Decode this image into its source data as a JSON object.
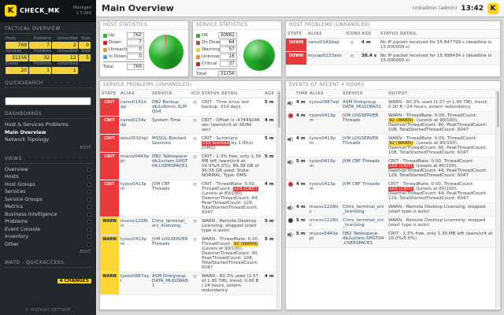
{
  "colors": {
    "accent_yellow": "#ffd600",
    "crit": "#e83a3a",
    "warn": "#ffd633",
    "ok_green": "#2eb122",
    "down": "#e83a3a",
    "unreach_orange": "#f48e26",
    "downtime_blue": "#44a6e0",
    "on_down_host": "#b84a4a",
    "dot_red": "#d23535",
    "dot_dark": "#3d3d3d"
  },
  "app": {
    "brand": "CHECK_MK",
    "edition": "Managed",
    "version": "1.5.0b9",
    "logo_letter": "K",
    "copyright": "© MATHIAS KETTNER",
    "user": "cmkadmin (admin)",
    "time": "13:42"
  },
  "sidebar": {
    "tactical_overview": {
      "title": "TACTICAL OVERVIEW",
      "groups": [
        {
          "headers": [
            "Hosts",
            "Problems",
            "Unhandled",
            "Stale"
          ],
          "values": [
            "769",
            "7",
            "2",
            "0"
          ]
        },
        {
          "headers": [
            "Services",
            "Problems",
            "Unhandled",
            "Stale"
          ],
          "values": [
            "31156",
            "32",
            "12",
            "5"
          ]
        },
        {
          "headers": [
            "Events",
            "Problems",
            "Unhandled",
            ""
          ],
          "values": [
            "20",
            "1",
            "1",
            ""
          ]
        }
      ]
    },
    "quicksearch": {
      "title": "QUICKSEARCH"
    },
    "dashboards": {
      "title": "DASHBOARDS",
      "items": [
        "Host & Services Problems",
        "Main Overview",
        "Network Topology"
      ],
      "active": "Main Overview",
      "edit_label": "EDIT"
    },
    "views": {
      "title": "VIEWS",
      "items": [
        "Overview",
        "Hosts",
        "Host Groups",
        "Services",
        "Service Groups",
        "Metrics",
        "Business Intelligence",
        "Problems",
        "Event Console",
        "Inventory",
        "Other"
      ],
      "edit_label": "EDIT"
    },
    "wato": {
      "title": "WATO - QUICKACCESS",
      "changes_label": "4 CHANGES"
    }
  },
  "main": {
    "page_title": "Main Overview",
    "host_statistics": {
      "title": "HOST STATISTICS",
      "rows": [
        {
          "label": "Up",
          "value": "762",
          "color": "#26b72a"
        },
        {
          "label": "Down",
          "value": "7",
          "color": "#e41a1a"
        },
        {
          "label": "Unreachable",
          "value": "0",
          "color": "#f48e26"
        },
        {
          "label": "In Downtime",
          "value": "0",
          "color": "#44a6e0"
        }
      ],
      "total_label": "Total",
      "total_value": "769"
    },
    "service_statistics": {
      "title": "SERVICE STATISTICS",
      "rows": [
        {
          "label": "OK",
          "value": "30982",
          "color": "#26b72a"
        },
        {
          "label": "On Down host",
          "value": "64",
          "color": "#b84a4a"
        },
        {
          "label": "Warning",
          "value": "57",
          "color": "#ffd21e"
        },
        {
          "label": "Unknown",
          "value": "16",
          "color": "#f48e26"
        },
        {
          "label": "Critical",
          "value": "37",
          "color": "#e41a1a"
        }
      ],
      "total_label": "Total",
      "total_value": "31156"
    },
    "host_problems": {
      "title": "HOST PROBLEMS (UNHANDLED)",
      "columns": [
        "STATE",
        "ALIAS",
        "ICONS",
        "AGE",
        "STATUS DETAIL"
      ],
      "rows": [
        {
          "state": "DOWN",
          "alias": "carsv0142dap",
          "age": "4 m",
          "detail": "No IP packet received for 15.847799 s (deadline is 15.000000 s)"
        },
        {
          "state": "DOWN",
          "alias": "mycap0233asn",
          "age": "38.4 s",
          "detail": "No IP packet received for 15.998434 s (deadline is 15.000000 s)"
        }
      ]
    },
    "service_problems": {
      "title": "SERVICE PROBLEMS (UNHANDLED)",
      "columns": [
        "STATE",
        "ALIAS",
        "SERVICE",
        "ICONS",
        "STATUS DETAIL",
        "AGE"
      ],
      "rows": [
        {
          "state": "CRIT",
          "alias": "carsv0141dap",
          "service": "DB2 Backup db2ufbmm.SLMQ04",
          "age": "5 m",
          "detail": "CRIT - Time since last backup: 314 days"
        },
        {
          "state": "CRIT",
          "alias": "carsv0234vdp",
          "service": "System Time",
          "age": "4 m",
          "detail": "CRIT - Offset is -47449246 sec (warn/crit at 30/60 sec)"
        },
        {
          "state": "CRIT",
          "alias": "wisv0532xpl",
          "service": "MSSQL Blocked Sessions",
          "age": "5 m",
          "detail": [
            {
              "text": "CRIT - Summary: "
            },
            {
              "text": "153 blocked",
              "badge": "crit"
            },
            {
              "text": " by 1 ID(s) [DMS]"
            }
          ]
        },
        {
          "state": "CRIT",
          "alias": "mucsv0443apl",
          "service": "DB2 Tablespace db2ucfam.SHGT04.USERSPACE1",
          "age": "5 m",
          "detail": "CRIT - 1.3% free, only 1.39 MB left (warn/crit at 10.0%/5.0%), 89.39 GB of 90.56 GB used, State: NORMAL, Type: DMS"
        },
        {
          "state": "CRIT",
          "alias": "tyosv0413pm",
          "service": "JVM CBF Threads",
          "age": "4 m",
          "detail": [
            {
              "text": "CRIT - ThreadRate: 0.00, ThreadCount: "
            },
            {
              "text": "103 (CRIT)",
              "badge": "crit"
            },
            {
              "text": ": (Levels at 80/100), DaemonThreadCount: 44, PeakThreadCount: 129, TotalStartedThreadCount: 6047"
            }
          ]
        },
        {
          "state": "WARN",
          "alias": "mucsv1228tic",
          "service": "Citrix_terminal_srv_licensing",
          "age": "5 m",
          "detail": "WARN - Remote Desktop Licensing: stopped (start type is auto)"
        },
        {
          "state": "WARN",
          "alias": "tyosv0413pm",
          "service": "JVM LOGSERVER Threads",
          "age": "5 m",
          "detail": [
            {
              "text": "WARN - ThreadRate: 0.00, ThreadCount: "
            },
            {
              "text": "92 (WARN)",
              "badge": "warn"
            },
            {
              "text": ": (Levels at 90/100), DaemonThreadCount: 90, PeakThreadCount: 108, TotalStartedThreadCount: 6047"
            }
          ]
        },
        {
          "state": "WARN",
          "alias": "tyosv0887sql",
          "service": "ASM Diskgroup DATA_MUGORA51",
          "age": "4 m",
          "detail": "WARN - 80.3% used (1.57 of 1.95 TiB), trend: 0.00 B / 24 hours, extern redundancy"
        }
      ]
    },
    "events": {
      "title": "EVENTS OF RECENT 4 HOURS",
      "columns": [
        "TIME",
        "ALIAS",
        "SERVICE",
        "OUTPUT"
      ],
      "rows": [
        {
          "icon": "speaker",
          "time": "4 m",
          "alias": "tyosv0887sql",
          "service": "ASM Diskgroup DATA_MUGORA51",
          "output": "WARN - 80.3% used (1.57 of 1.95 TiB), trend: 0.00 B / 24 hours, extern redundancy"
        },
        {
          "icon": "dot-red",
          "time": "4 m",
          "alias": "tyosv0413pm",
          "service": "JVM LOGSERVER Threads",
          "output": [
            {
              "text": "WARN - ThreadRate: 0.00, ThreadCount: "
            },
            {
              "text": "92 (WARN)",
              "badge": "warn"
            },
            {
              "text": ": (Levels at 90/100), DaemonThreadCount: 90, PeakThreadCount: 108, TotalStartedThreadCount: 6047"
            }
          ]
        },
        {
          "icon": "speaker",
          "time": "4 m",
          "alias": "tyosv0413pm",
          "service": "JVM LOGSERVER Threads",
          "output": [
            {
              "text": "WARN - ThreadRate: 0.00, ThreadCount: "
            },
            {
              "text": "92 (WARN)",
              "badge": "warn"
            },
            {
              "text": ": (Levels at 90/100), DaemonThreadCount: 90, PeakThreadCount: 108, TotalStartedThreadCount: 6047"
            }
          ]
        },
        {
          "icon": "speaker",
          "time": "5 m",
          "alias": "tyosv0413pm",
          "service": "JVM CBF Threads",
          "output": [
            {
              "text": "CRIT - ThreadRate: 0.00, ThreadCount: "
            },
            {
              "text": "103 (CRIT)",
              "badge": "crit"
            },
            {
              "text": ": (Levels at 80/100), DaemonThreadCount: 44, PeakThreadCount: 129, TotalStartedThreadCount: 6047"
            }
          ]
        },
        {
          "icon": "dot-red",
          "time": "4 m",
          "alias": "tyosv0413pm",
          "service": "JVM CBF Threads",
          "output": [
            {
              "text": "CRIT - ThreadRate: 0.00, ThreadCount: "
            },
            {
              "text": "103 (CRIT)",
              "badge": "crit"
            },
            {
              "text": ": (Levels at 80/100), DaemonThreadCount: 44, PeakThreadCount: 129, TotalStartedThreadCount: 6047"
            }
          ]
        },
        {
          "icon": "speaker",
          "time": "4 m",
          "alias": "mucsv1228tic",
          "service": "Citrix_terminal_srv_licensing",
          "output": "WARN - Remote Desktop Licensing: stopped (start type is auto)"
        },
        {
          "icon": "dot-dark",
          "time": "5 m",
          "alias": "mucsv1228tic",
          "service": "Citrix_terminal_srv_licensing",
          "output": "WARN - Remote Desktop Licensing: stopped (start type is auto)"
        },
        {
          "icon": "speaker",
          "time": "5 m",
          "alias": "mucsv0443apl",
          "service": "DB2 Tablespace db2ucfam.SHGT04.USERSPACE1",
          "output": "CRIT - 1.3% free, only 1.39 MB left (warn/crit at 10.0%/5.0%)"
        }
      ]
    }
  }
}
